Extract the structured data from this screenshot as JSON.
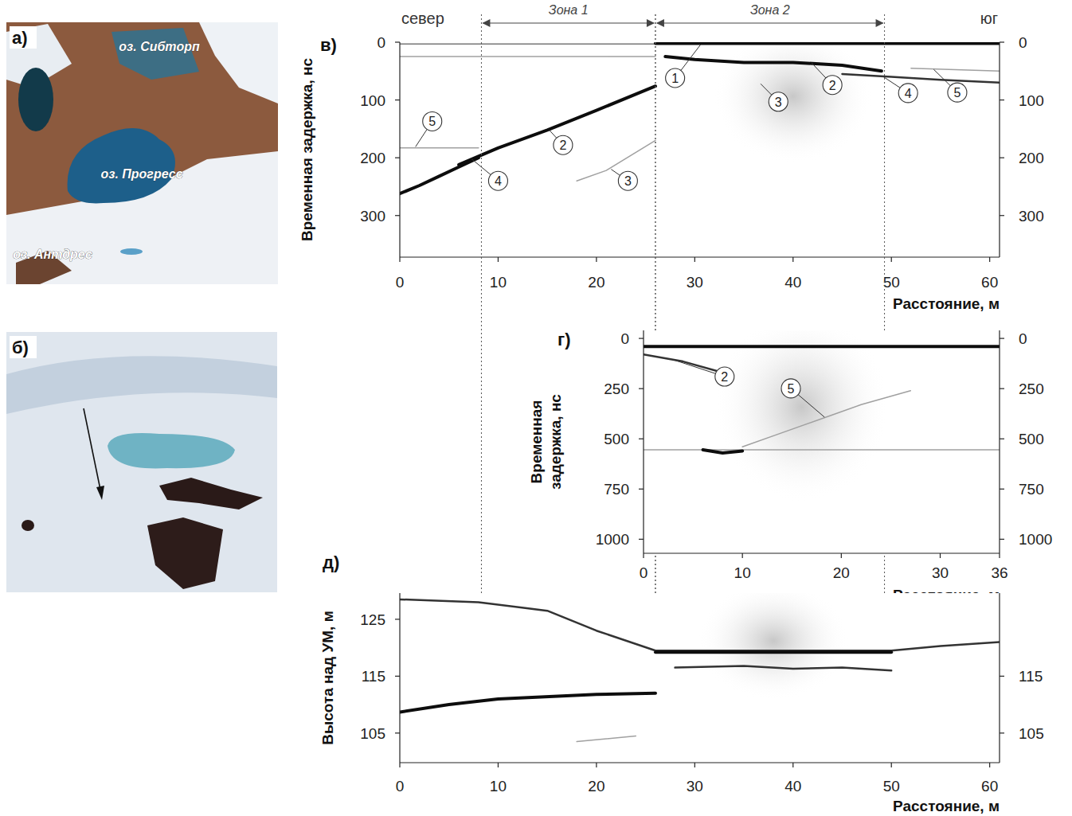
{
  "photos": [
    {
      "letter": "а)",
      "labels": [
        "оз. Сибторп",
        "оз. Прогресс",
        "оз. Антдрес"
      ]
    },
    {
      "letter": "б)"
    }
  ],
  "chart_data": [
    {
      "type": "radargram",
      "letter": "в)",
      "direction_labels": [
        "север",
        "юг"
      ],
      "zones": [
        {
          "label": "Зона 1",
          "x": [
            8.3,
            26
          ]
        },
        {
          "label": "Зона 2",
          "x": [
            26,
            49.3
          ]
        }
      ],
      "x_label": "Расстояние, м",
      "y_label": "Временная задержка, нс",
      "xlim": [
        0,
        61
      ],
      "xticks": [
        0,
        10,
        20,
        30,
        40,
        50,
        60
      ],
      "ylim": [
        372,
        0
      ],
      "yticks": [
        0,
        100,
        200,
        300
      ],
      "y2lim": [
        372,
        0
      ],
      "y2ticks": [
        0,
        100,
        200,
        300
      ],
      "series": [
        {
          "x": [
            0,
            26
          ],
          "values": [
            3,
            3
          ],
          "line_style": "thin"
        },
        {
          "x": [
            0,
            26
          ],
          "values": [
            25,
            25
          ],
          "line_style": "faint"
        },
        {
          "x": [
            0,
            2,
            4,
            6,
            8
          ],
          "values": [
            262,
            248,
            232,
            216,
            200
          ],
          "line_style": "bold"
        },
        {
          "x": [
            6,
            10,
            15,
            20,
            26
          ],
          "values": [
            212,
            183,
            152,
            118,
            76
          ],
          "line_style": "bold"
        },
        {
          "x": [
            0,
            8
          ],
          "values": [
            183,
            183
          ],
          "line_style": "faint"
        },
        {
          "x": [
            18,
            21,
            26
          ],
          "values": [
            240,
            222,
            170
          ],
          "line_style": "faint"
        },
        {
          "x": [
            26,
            61
          ],
          "values": [
            2,
            2
          ],
          "line_style": "bold"
        },
        {
          "x": [
            27,
            30,
            35,
            40,
            45,
            49
          ],
          "values": [
            25,
            30,
            35,
            35,
            40,
            50
          ],
          "line_style": "bold"
        },
        {
          "x": [
            45,
            50,
            55,
            61
          ],
          "values": [
            55,
            60,
            65,
            70
          ],
          "line_style": "medium"
        },
        {
          "x": [
            52,
            61
          ],
          "values": [
            45,
            50
          ],
          "line_style": "faint"
        }
      ],
      "annotations": [
        {
          "text": "1",
          "x": 28,
          "y": 62,
          "target_x": 30.6,
          "target_y": 4
        },
        {
          "text": "2",
          "x": 44,
          "y": 74,
          "target_x": 41.9,
          "target_y": 36
        },
        {
          "text": "3",
          "x": 38.5,
          "y": 103,
          "target_x": 36.7,
          "target_y": 72
        },
        {
          "text": "4",
          "x": 51.7,
          "y": 88,
          "target_x": 49.2,
          "target_y": 60
        },
        {
          "text": "5",
          "x": 56.7,
          "y": 87,
          "target_x": 54.3,
          "target_y": 47
        },
        {
          "text": "5",
          "x": 3.3,
          "y": 137,
          "target_x": 1.6,
          "target_y": 181
        },
        {
          "text": "2",
          "x": 16.6,
          "y": 178,
          "target_x": 15.2,
          "target_y": 152
        },
        {
          "text": "4",
          "x": 10,
          "y": 240,
          "target_x": 7.3,
          "target_y": 202
        },
        {
          "text": "3",
          "x": 23.2,
          "y": 240,
          "target_x": 21.5,
          "target_y": 220
        }
      ]
    },
    {
      "type": "radargram",
      "letter": "г)",
      "x_label": "Расстояние, м",
      "y_label": "Временная задержка, нс",
      "xlim": [
        0,
        36
      ],
      "xticks": [
        0,
        10,
        20,
        30,
        36
      ],
      "ylim": [
        1070,
        -40
      ],
      "yticks": [
        0,
        250,
        500,
        750,
        1000
      ],
      "y2lim": [
        1070,
        -40
      ],
      "y2ticks": [
        0,
        250,
        500,
        750,
        1000
      ],
      "series": [
        {
          "x": [
            0,
            36
          ],
          "values": [
            40,
            40
          ],
          "line_style": "bold"
        },
        {
          "x": [
            0,
            4,
            8
          ],
          "values": [
            80,
            115,
            170
          ],
          "line_style": "medium"
        },
        {
          "x": [
            0,
            36
          ],
          "values": [
            555,
            555
          ],
          "line_style": "faint"
        },
        {
          "x": [
            6,
            8,
            10
          ],
          "values": [
            555,
            570,
            560
          ],
          "line_style": "bold"
        },
        {
          "x": [
            10,
            14,
            18,
            22,
            27
          ],
          "values": [
            540,
            470,
            400,
            330,
            260
          ],
          "line_style": "faint"
        }
      ],
      "annotations": [
        {
          "text": "2",
          "x": 8.2,
          "y": 190,
          "target_x": 3,
          "target_y": 106
        },
        {
          "text": "5",
          "x": 14.9,
          "y": 249,
          "target_x": 18.3,
          "target_y": 392
        }
      ]
    },
    {
      "type": "radargram",
      "letter": "д)",
      "x_label": "Расстояние, м",
      "y_label": "Высота над УМ, м",
      "xlim": [
        0,
        61
      ],
      "xticks": [
        0,
        10,
        20,
        30,
        40,
        50,
        60
      ],
      "ylim": [
        99.8,
        129.6
      ],
      "yticks": [
        125,
        115,
        105
      ],
      "y2lim": [
        99.8,
        129.6
      ],
      "y2ticks": [
        115,
        105
      ],
      "series": [
        {
          "x": [
            0,
            8,
            15,
            20,
            26,
            50,
            55,
            61
          ],
          "values": [
            128.5,
            128,
            126.5,
            123,
            119.5,
            119.5,
            120.3,
            121
          ],
          "line_style": "medium"
        },
        {
          "x": [
            26,
            50
          ],
          "values": [
            119.2,
            119.2
          ],
          "line_style": "bold"
        },
        {
          "x": [
            28,
            35,
            40,
            45,
            50
          ],
          "values": [
            116.5,
            116.8,
            116.3,
            116.5,
            116
          ],
          "line_style": "medium"
        },
        {
          "x": [
            0,
            5,
            10,
            20,
            26
          ],
          "values": [
            108.7,
            110,
            111,
            111.8,
            112
          ],
          "line_style": "bold"
        },
        {
          "x": [
            18,
            24
          ],
          "values": [
            103.5,
            104.5
          ],
          "line_style": "faint"
        }
      ],
      "annotations": []
    }
  ]
}
